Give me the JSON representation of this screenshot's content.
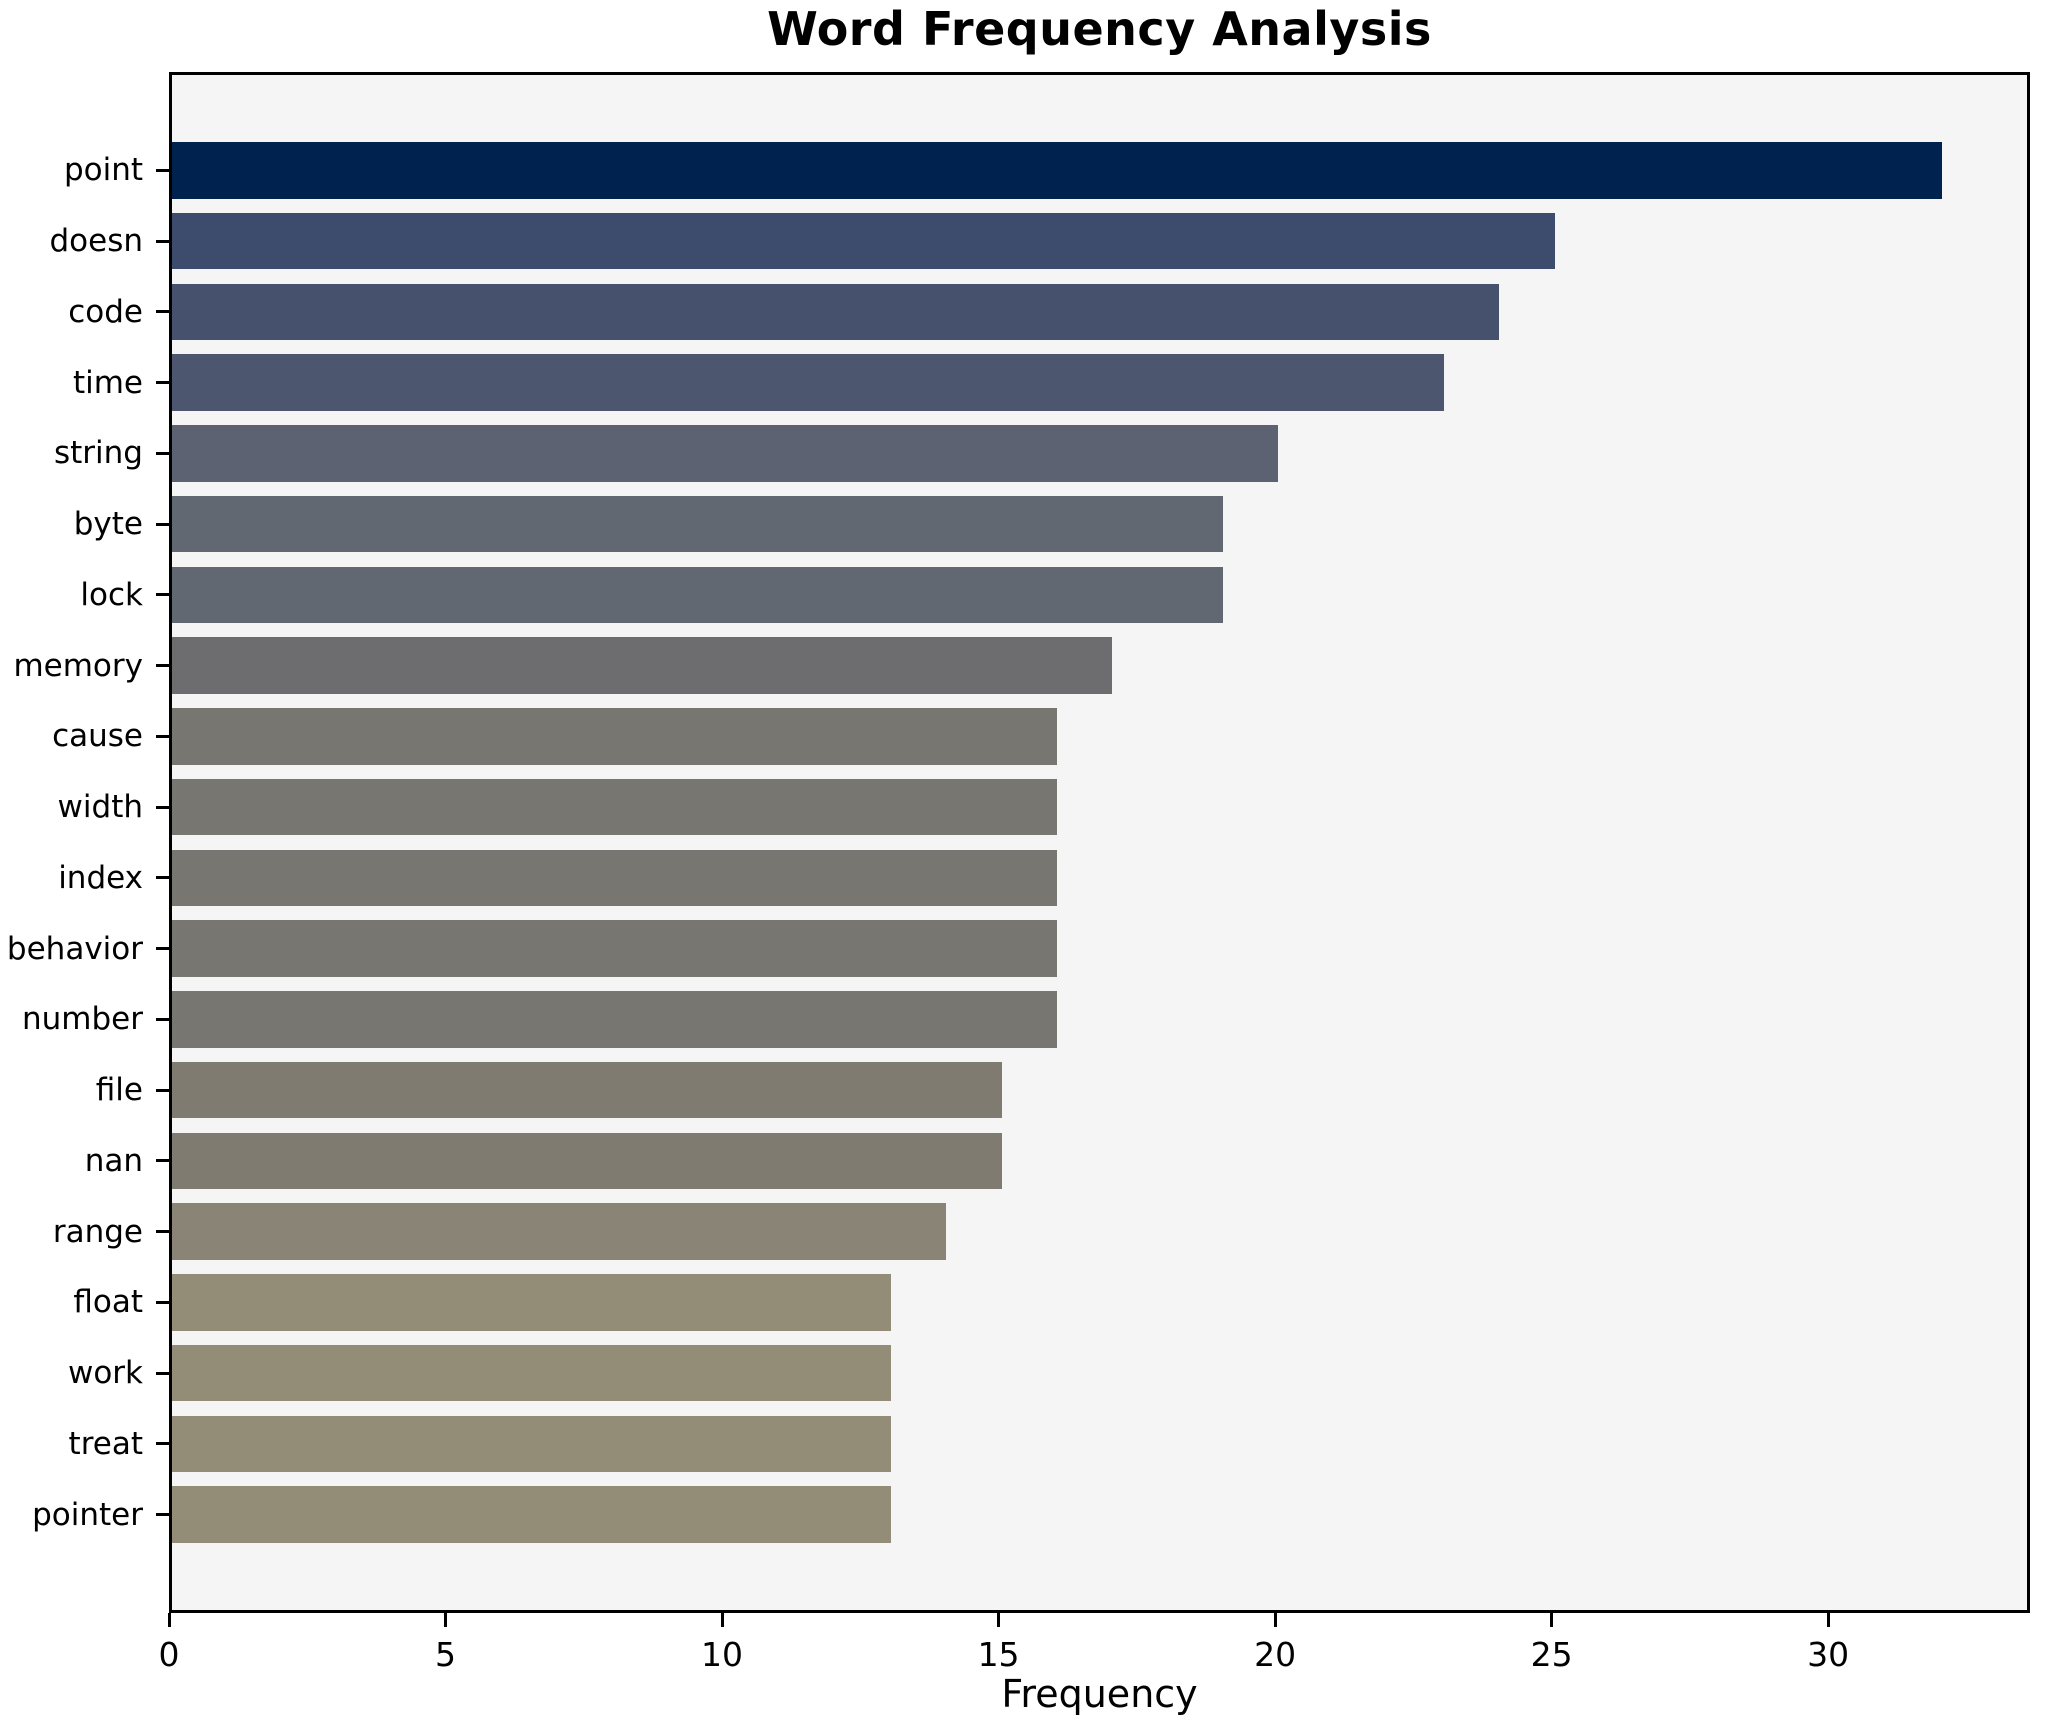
{
  "chart_data": {
    "type": "bar",
    "orientation": "horizontal",
    "title": "Word Frequency Analysis",
    "xlabel": "Frequency",
    "ylabel": "",
    "categories": [
      "point",
      "doesn",
      "code",
      "time",
      "string",
      "byte",
      "lock",
      "memory",
      "cause",
      "width",
      "index",
      "behavior",
      "number",
      "file",
      "nan",
      "range",
      "float",
      "work",
      "treat",
      "pointer"
    ],
    "values": [
      32,
      25,
      24,
      23,
      20,
      19,
      19,
      17,
      16,
      16,
      16,
      16,
      16,
      15,
      15,
      14,
      13,
      13,
      13,
      13
    ],
    "bar_colors": [
      "#00224e",
      "#3d4c6d",
      "#46516e",
      "#4c566e",
      "#5c6271",
      "#616871",
      "#616871",
      "#6d6d70",
      "#787670",
      "#787670",
      "#787670",
      "#787670",
      "#787670",
      "#7f7b71",
      "#7f7b71",
      "#898476",
      "#938d78",
      "#938d78",
      "#938d78",
      "#938d78"
    ],
    "xlim": [
      0,
      33.65
    ],
    "xticks": [
      0,
      5,
      10,
      15,
      20,
      25,
      30
    ],
    "grid": false,
    "legend": "none",
    "plot_background": "#f5f5f6",
    "figure_background": "#ffffff",
    "spine_color": "#000000"
  }
}
